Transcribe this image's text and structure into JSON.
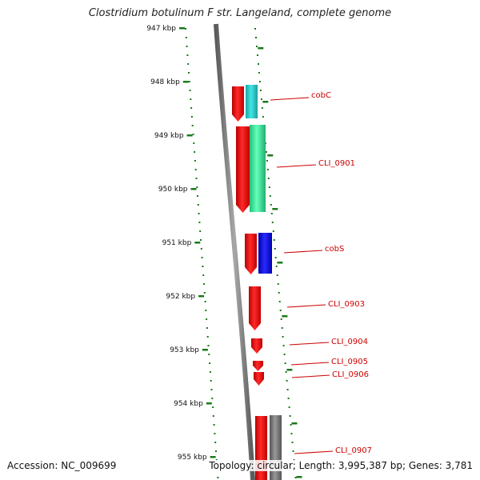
{
  "title": "Clostridium botulinum F str. Langeland, complete genome",
  "footer": {
    "accession": "Accession: NC_009699",
    "topology": "Topology: circular; Length: 3,995,387 bp; Genes: 3,781"
  },
  "colors": {
    "backbone": "#888888",
    "ticks": "#1a7a1a",
    "label_text": "#cc0000",
    "label_line": "#cc0000",
    "reverse_strand": "#ff0000",
    "cobC": "#22cccc",
    "CLI_0901": "#33ee99",
    "cobS": "#0000ee",
    "CLI_0907": "#777777"
  },
  "ticks": [
    "947 kbp",
    "948 kbp",
    "949 kbp",
    "950 kbp",
    "951 kbp",
    "952 kbp",
    "953 kbp",
    "954 kbp",
    "955 kbp"
  ],
  "genes": [
    {
      "label": "cobC",
      "color_key": "cobC"
    },
    {
      "label": "CLI_0901",
      "color_key": "CLI_0901"
    },
    {
      "label": "cobS",
      "color_key": "cobS"
    },
    {
      "label": "CLI_0903",
      "color_key": "reverse_strand"
    },
    {
      "label": "CLI_0904",
      "color_key": "reverse_strand"
    },
    {
      "label": "CLI_0905",
      "color_key": "reverse_strand"
    },
    {
      "label": "CLI_0906",
      "color_key": "reverse_strand"
    },
    {
      "label": "CLI_0907",
      "color_key": "CLI_0907"
    }
  ]
}
